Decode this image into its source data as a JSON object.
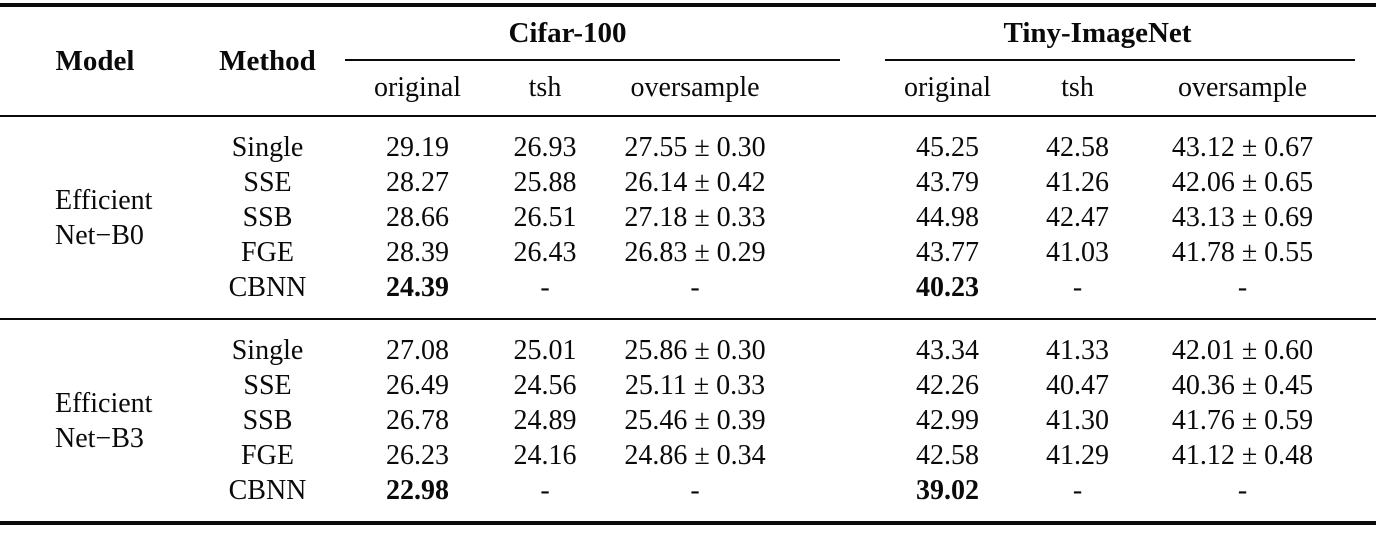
{
  "table": {
    "headers": {
      "model": "Model",
      "method": "Method",
      "group1": "Cifar-100",
      "group2": "Tiny-ImageNet",
      "sub_original": "original",
      "sub_tsh": "tsh",
      "sub_oversample": "oversample"
    },
    "groups": [
      {
        "model_line1": "Efficient",
        "model_line2": "Net−B0",
        "rows": [
          {
            "method": "Single",
            "c_original": "29.19",
            "c_tsh": "26.93",
            "c_oversample": "27.55 ± 0.30",
            "t_original": "45.25",
            "t_tsh": "42.58",
            "t_oversample": "43.12 ± 0.67"
          },
          {
            "method": "SSE",
            "c_original": "28.27",
            "c_tsh": "25.88",
            "c_oversample": "26.14 ± 0.42",
            "t_original": "43.79",
            "t_tsh": "41.26",
            "t_oversample": "42.06 ± 0.65"
          },
          {
            "method": "SSB",
            "c_original": "28.66",
            "c_tsh": "26.51",
            "c_oversample": "27.18 ± 0.33",
            "t_original": "44.98",
            "t_tsh": "42.47",
            "t_oversample": "43.13 ± 0.69"
          },
          {
            "method": "FGE",
            "c_original": "28.39",
            "c_tsh": "26.43",
            "c_oversample": "26.83 ± 0.29",
            "t_original": "43.77",
            "t_tsh": "41.03",
            "t_oversample": "41.78 ± 0.55"
          },
          {
            "method": "CBNN",
            "c_original": "24.39",
            "c_tsh": "-",
            "c_oversample": "-",
            "t_original": "40.23",
            "t_tsh": "-",
            "t_oversample": "-"
          }
        ]
      },
      {
        "model_line1": "Efficient",
        "model_line2": "Net−B3",
        "rows": [
          {
            "method": "Single",
            "c_original": "27.08",
            "c_tsh": "25.01",
            "c_oversample": "25.86 ± 0.30",
            "t_original": "43.34",
            "t_tsh": "41.33",
            "t_oversample": "42.01 ± 0.60"
          },
          {
            "method": "SSE",
            "c_original": "26.49",
            "c_tsh": "24.56",
            "c_oversample": "25.11 ± 0.33",
            "t_original": "42.26",
            "t_tsh": "40.47",
            "t_oversample": "40.36 ± 0.45"
          },
          {
            "method": "SSB",
            "c_original": "26.78",
            "c_tsh": "24.89",
            "c_oversample": "25.46 ± 0.39",
            "t_original": "42.99",
            "t_tsh": "41.30",
            "t_oversample": "41.76 ± 0.59"
          },
          {
            "method": "FGE",
            "c_original": "26.23",
            "c_tsh": "24.16",
            "c_oversample": "24.86 ± 0.34",
            "t_original": "42.58",
            "t_tsh": "41.29",
            "t_oversample": "41.12 ± 0.48"
          },
          {
            "method": "CBNN",
            "c_original": "22.98",
            "c_tsh": "-",
            "c_oversample": "-",
            "t_original": "39.02",
            "t_tsh": "-",
            "t_oversample": "-"
          }
        ]
      }
    ]
  }
}
